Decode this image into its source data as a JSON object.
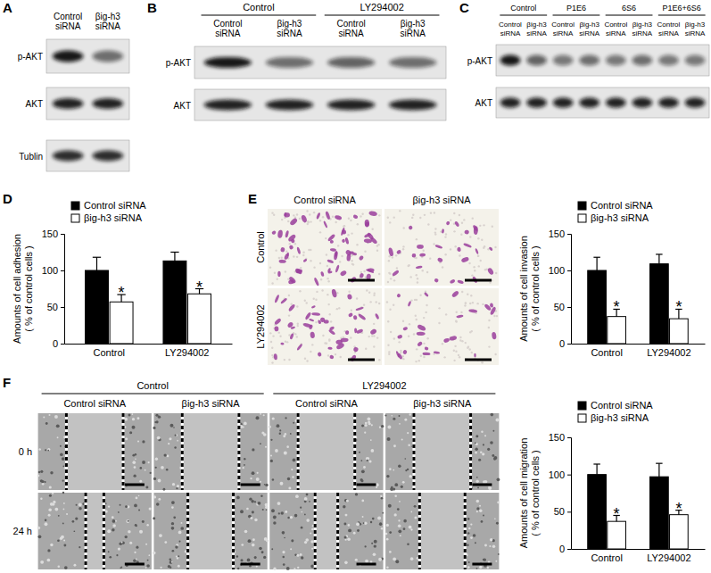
{
  "blots": [
    {
      "panel_label": "A",
      "lanes": [
        [
          "Control",
          "siRNA"
        ],
        [
          "βig-h3",
          "siRNA"
        ]
      ],
      "rows": [
        {
          "name": "p-AKT",
          "intensity": [
            0.95,
            0.55
          ]
        },
        {
          "name": "AKT",
          "intensity": [
            0.9,
            0.9
          ]
        },
        {
          "name": "Tublin",
          "intensity": [
            0.85,
            0.85
          ]
        }
      ]
    },
    {
      "panel_label": "B",
      "groups": [
        {
          "label": "Control",
          "lanes": 2
        },
        {
          "label": "LY294002",
          "lanes": 2
        }
      ],
      "lanes": [
        [
          "Control",
          "siRNA"
        ],
        [
          "βig-h3",
          "siRNA"
        ],
        [
          "Control",
          "siRNA"
        ],
        [
          "βig-h3",
          "siRNA"
        ]
      ],
      "rows": [
        {
          "name": "p-AKT",
          "intensity": [
            0.95,
            0.55,
            0.6,
            0.55
          ]
        },
        {
          "name": "AKT",
          "intensity": [
            0.9,
            0.9,
            0.9,
            0.9
          ]
        }
      ]
    },
    {
      "panel_label": "C",
      "groups": [
        {
          "label": "Control",
          "lanes": 2
        },
        {
          "label": "P1E6",
          "lanes": 2
        },
        {
          "label": "6S6",
          "lanes": 2
        },
        {
          "label": "P1E6+6S6",
          "lanes": 2
        }
      ],
      "lanes": [
        [
          "Control",
          "siRNA"
        ],
        [
          "βig-h3",
          "siRNA"
        ],
        [
          "Control",
          "siRNA"
        ],
        [
          "βig-h3",
          "siRNA"
        ],
        [
          "Control",
          "siRNA"
        ],
        [
          "βig-h3",
          "siRNA"
        ],
        [
          "Control",
          "siRNA"
        ],
        [
          "βig-h3",
          "siRNA"
        ]
      ],
      "rows": [
        {
          "name": "p-AKT",
          "intensity": [
            0.95,
            0.6,
            0.5,
            0.55,
            0.5,
            0.55,
            0.5,
            0.5
          ]
        },
        {
          "name": "AKT",
          "intensity": [
            0.9,
            0.9,
            0.9,
            0.9,
            0.9,
            0.9,
            0.9,
            0.9
          ]
        }
      ]
    }
  ],
  "images": [
    {
      "panel_label": "E",
      "columns": [
        "Control siRNA",
        "βig-h3 siRNA"
      ],
      "rows": [
        "Control",
        "LY294002"
      ]
    },
    {
      "panel_label": "F",
      "groups": [
        {
          "label": "Control",
          "lanes": 2
        },
        {
          "label": "LY294002",
          "lanes": 2
        }
      ],
      "columns": [
        "Control siRNA",
        "βig-h3 siRNA",
        "Control siRNA",
        "βig-h3 siRNA"
      ],
      "rows": [
        "0 h",
        "24 h"
      ]
    }
  ],
  "chart_data": [
    {
      "type": "bar",
      "panel_label": "D",
      "y_label": [
        "Amounts of cell adhesion",
        "( % of control cells )"
      ],
      "categories": [
        "Control",
        "LY294002"
      ],
      "series": [
        {
          "name": "Control siRNA",
          "color": "#000000",
          "values": [
            100,
            113
          ],
          "errors": [
            18,
            12
          ]
        },
        {
          "name": "βig-h3 siRNA",
          "color": "#ffffff",
          "values": [
            57,
            68
          ],
          "errors": [
            10,
            7
          ]
        }
      ],
      "ylim": [
        0,
        150
      ],
      "yticks": [
        0,
        50,
        100,
        150
      ],
      "legend": "top",
      "annotations": [
        {
          "text": "*",
          "series": 1,
          "category": 0
        },
        {
          "text": "*",
          "series": 1,
          "category": 1
        }
      ]
    },
    {
      "type": "bar",
      "y_label": [
        "Amounts of cell invasion",
        "( % of control cells )"
      ],
      "categories": [
        "Control",
        "LY294002"
      ],
      "series": [
        {
          "name": "Control siRNA",
          "color": "#000000",
          "values": [
            100,
            109
          ],
          "errors": [
            18,
            13
          ]
        },
        {
          "name": "βig-h3 siRNA",
          "color": "#ffffff",
          "values": [
            37,
            34
          ],
          "errors": [
            10,
            13
          ]
        }
      ],
      "ylim": [
        0,
        150
      ],
      "yticks": [
        0,
        50,
        100,
        150
      ],
      "legend": "top",
      "annotations": [
        {
          "text": "*",
          "series": 1,
          "category": 0
        },
        {
          "text": "*",
          "series": 1,
          "category": 1
        }
      ]
    },
    {
      "type": "bar",
      "y_label": [
        "Amounts of cell migration",
        "( % of control cells )"
      ],
      "categories": [
        "Control",
        "LY294002"
      ],
      "series": [
        {
          "name": "Control siRNA",
          "color": "#000000",
          "values": [
            100,
            97
          ],
          "errors": [
            14,
            18
          ]
        },
        {
          "name": "βig-h3 siRNA",
          "color": "#ffffff",
          "values": [
            37,
            46
          ],
          "errors": [
            8,
            6
          ]
        }
      ],
      "ylim": [
        0,
        150
      ],
      "yticks": [
        0,
        50,
        100,
        150
      ],
      "legend": "top",
      "annotations": [
        {
          "text": "*",
          "series": 1,
          "category": 0
        },
        {
          "text": "*",
          "series": 1,
          "category": 1
        }
      ]
    }
  ]
}
